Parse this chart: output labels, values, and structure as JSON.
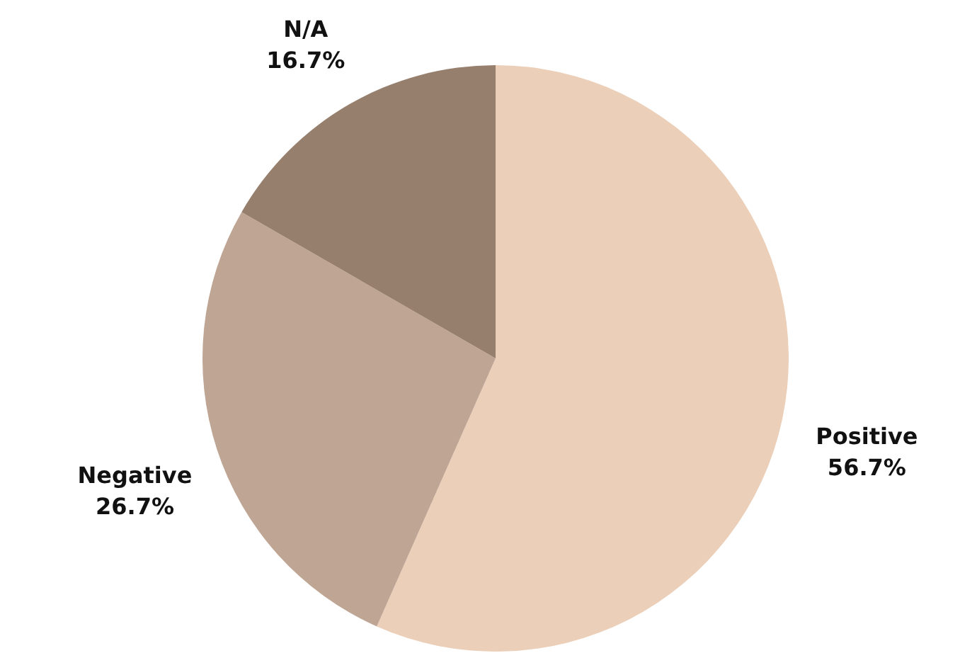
{
  "chart_data": {
    "type": "pie",
    "categories": [
      "Positive",
      "Negative",
      "N/A"
    ],
    "values": [
      56.7,
      26.7,
      16.7
    ],
    "colors": [
      "#ebcfb8",
      "#bfa594",
      "#977f6d"
    ],
    "value_labels": [
      "56.7%",
      "26.7%",
      "16.7%"
    ],
    "legend": false
  }
}
